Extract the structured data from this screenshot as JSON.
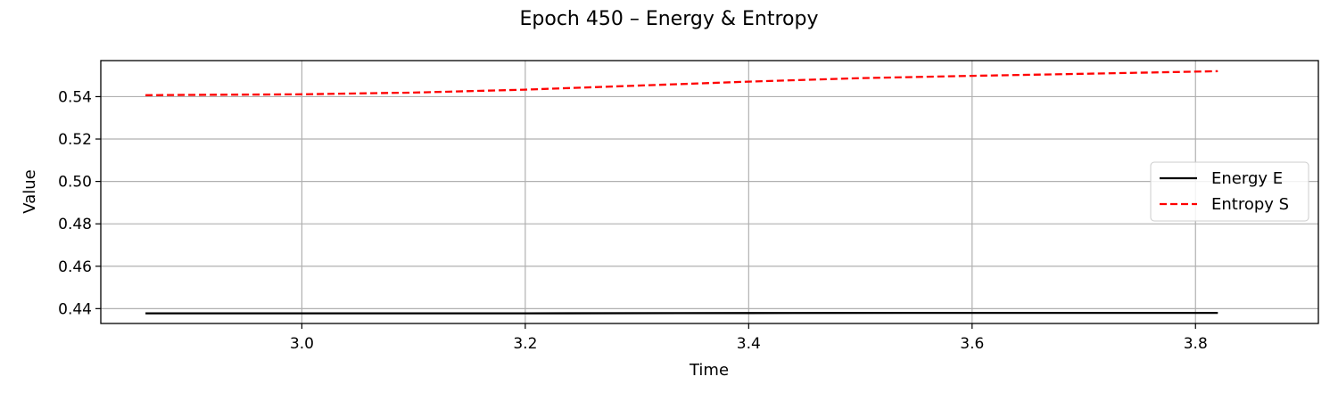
{
  "chart_data": {
    "type": "line",
    "title": "Epoch 450 – Energy & Entropy",
    "xlabel": "Time",
    "ylabel": "Value",
    "xlim": [
      2.82,
      3.91
    ],
    "ylim": [
      0.433,
      0.557
    ],
    "xticks": [
      3.0,
      3.2,
      3.4,
      3.6,
      3.8
    ],
    "xtick_labels": [
      "3.0",
      "3.2",
      "3.4",
      "3.6",
      "3.8"
    ],
    "yticks": [
      0.44,
      0.46,
      0.48,
      0.5,
      0.52,
      0.54
    ],
    "ytick_labels": [
      "0.44",
      "0.46",
      "0.48",
      "0.50",
      "0.52",
      "0.54"
    ],
    "grid": true,
    "legend_position": "center-right",
    "series": [
      {
        "name": "Energy E",
        "color": "#000000",
        "style": "solid",
        "x": [
          2.86,
          3.0,
          3.2,
          3.4,
          3.6,
          3.82
        ],
        "values": [
          0.4378,
          0.4378,
          0.4378,
          0.4379,
          0.438,
          0.438
        ]
      },
      {
        "name": "Entropy S",
        "color": "#ff0000",
        "style": "dashed",
        "x": [
          2.86,
          2.9,
          3.0,
          3.1,
          3.2,
          3.3,
          3.4,
          3.5,
          3.6,
          3.7,
          3.82
        ],
        "values": [
          0.5407,
          0.5408,
          0.5411,
          0.5419,
          0.5433,
          0.5452,
          0.5471,
          0.5487,
          0.5498,
          0.5508,
          0.552
        ]
      }
    ]
  }
}
